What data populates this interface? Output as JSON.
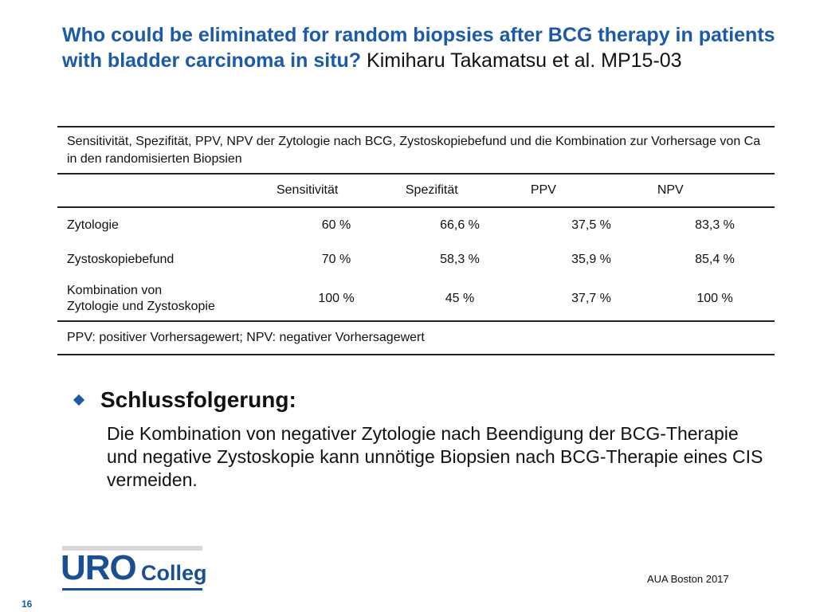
{
  "title": {
    "main": "Who could be eliminated for random biopsies after BCG therapy in patients with bladder carcinoma in situ?",
    "author": "Kimiharu Takamatsu et al. MP15-03"
  },
  "table": {
    "caption": "Sensitivität, Spezifität, PPV, NPV der Zytologie nach BCG, Zystoskopiebefund und die Kombination zur Vorhersage von Ca in den randomisierten Biopsien",
    "columns": [
      "Sensitivität",
      "Spezifität",
      "PPV",
      "NPV"
    ],
    "rows": [
      {
        "label": "Zytologie",
        "values": [
          "60 %",
          "66,6 %",
          "37,5 %",
          "83,3 %"
        ]
      },
      {
        "label": "Zystoskopiebefund",
        "values": [
          "70 %",
          "58,3 %",
          "35,9 %",
          "85,4 %"
        ]
      },
      {
        "label_line1": "Kombination von",
        "label_line2": "Zytologie und Zystoskopie",
        "values": [
          "100 %",
          "45 %",
          "37,7 %",
          "100 %"
        ]
      }
    ],
    "footnote": "PPV: positiver Vorhersagewert;  NPV: negativer Vorhersagewert"
  },
  "conclusion": {
    "heading": "Schlussfolgerung:",
    "text": "Die Kombination von negativer Zytologie nach Beendigung der BCG-Therapie und negative Zystoskopie kann unnötige Biopsien nach BCG-Therapie eines CIS vermeiden."
  },
  "footer": {
    "logo_uro": "URO",
    "logo_colleg": "Colleg",
    "conference": "AUA Boston 2017",
    "page_number": "16"
  },
  "colors": {
    "title_blue": "#1a5aa6",
    "logo_blue": "#1a4f94"
  }
}
